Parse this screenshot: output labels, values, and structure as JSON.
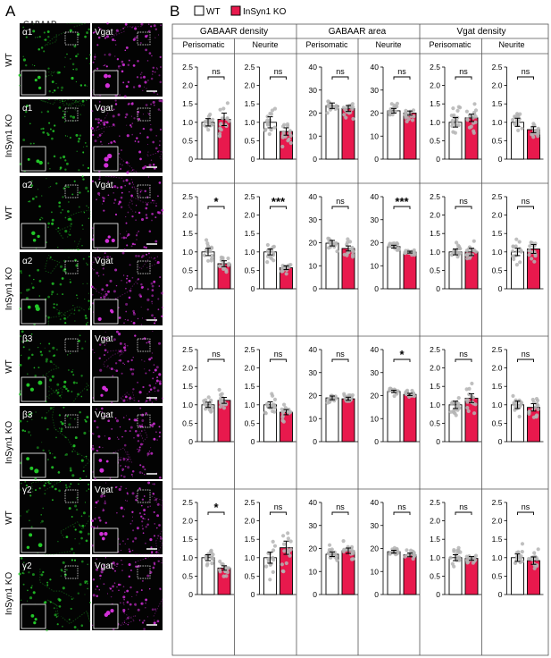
{
  "panel_a": {
    "letter": "A",
    "header": "GABAAR",
    "scale_label": "",
    "groups": [
      {
        "wt_label": "WT",
        "ko_label": "InSyn1 KO",
        "marker_wt": "α1",
        "marker_ko": "α1",
        "vgat": "Vgat"
      },
      {
        "wt_label": "WT",
        "ko_label": "InSyn1 KO",
        "marker_wt": "α2",
        "marker_ko": "α2",
        "vgat": "Vgat"
      },
      {
        "wt_label": "WT",
        "ko_label": "InSyn1 KO",
        "marker_wt": "β3",
        "marker_ko": "β3",
        "vgat": "Vgat"
      },
      {
        "wt_label": "WT",
        "ko_label": "InSyn1 KO",
        "marker_wt": "γ2",
        "marker_ko": "γ2",
        "vgat": "Vgat"
      }
    ],
    "colors": {
      "green": "#22c628",
      "magenta": "#d22fd8",
      "background": "#030303"
    }
  },
  "panel_b": {
    "letter": "B",
    "legend": [
      {
        "label": "WT",
        "color": "#ffffff"
      },
      {
        "label": "InSyn1 KO",
        "color": "#e8194d"
      }
    ],
    "measures": [
      "GABAAR density",
      "GABAAR area",
      "Vgat density"
    ],
    "locations": [
      "Perisomatic",
      "Neurite",
      "Perisomatic",
      "Neurite",
      "Perisomatic",
      "Neurite"
    ]
  },
  "chart_data": {
    "type": "bar",
    "categories": [
      "WT",
      "InSyn1 KO"
    ],
    "colors": {
      "wt": "#ffffff",
      "ko": "#e8194d",
      "dots": "#b4b4b4"
    },
    "axes": {
      "density": {
        "ylim": [
          0,
          2.5
        ],
        "ticks": [
          "0",
          "0.5",
          "1.0",
          "1.5",
          "2.0",
          "2.5"
        ],
        "tick_values": [
          0,
          0.5,
          1,
          1.5,
          2,
          2.5
        ]
      },
      "area": {
        "ylim": [
          0,
          40
        ],
        "ticks": [
          "0",
          "10",
          "20",
          "30",
          "40"
        ],
        "tick_values": [
          0,
          10,
          20,
          30,
          40
        ]
      }
    },
    "rows": [
      {
        "subunit": "α1",
        "plots": [
          {
            "measure": "GABAAR density",
            "location": "Perisomatic",
            "axis": "density",
            "wt": 1.0,
            "ko": 1.08,
            "wt_err": 0.1,
            "ko_err": 0.17,
            "sig": "ns"
          },
          {
            "measure": "GABAAR density",
            "location": "Neurite",
            "axis": "density",
            "wt": 1.0,
            "ko": 0.75,
            "wt_err": 0.15,
            "ko_err": 0.1,
            "sig": "ns"
          },
          {
            "measure": "GABAAR area",
            "location": "Perisomatic",
            "axis": "area",
            "wt": 23.2,
            "ko": 22.0,
            "wt_err": 1.2,
            "ko_err": 1.3,
            "sig": "ns"
          },
          {
            "measure": "GABAAR area",
            "location": "Neurite",
            "axis": "area",
            "wt": 21.0,
            "ko": 20.0,
            "wt_err": 1.0,
            "ko_err": 0.9,
            "sig": "ns"
          },
          {
            "measure": "Vgat density",
            "location": "Perisomatic",
            "axis": "density",
            "wt": 1.0,
            "ko": 1.12,
            "wt_err": 0.13,
            "ko_err": 0.1,
            "sig": "ns"
          },
          {
            "measure": "Vgat density",
            "location": "Neurite",
            "axis": "density",
            "wt": 1.0,
            "ko": 0.8,
            "wt_err": 0.11,
            "ko_err": 0.08,
            "sig": "ns"
          }
        ]
      },
      {
        "subunit": "α2",
        "plots": [
          {
            "measure": "GABAAR density",
            "location": "Perisomatic",
            "axis": "density",
            "wt": 1.0,
            "ko": 0.68,
            "wt_err": 0.1,
            "ko_err": 0.08,
            "sig": "*"
          },
          {
            "measure": "GABAAR density",
            "location": "Neurite",
            "axis": "density",
            "wt": 1.0,
            "ko": 0.57,
            "wt_err": 0.08,
            "ko_err": 0.05,
            "sig": "***"
          },
          {
            "measure": "GABAAR area",
            "location": "Perisomatic",
            "axis": "area",
            "wt": 19.8,
            "ko": 17.5,
            "wt_err": 1.2,
            "ko_err": 1.1,
            "sig": "ns"
          },
          {
            "measure": "GABAAR area",
            "location": "Neurite",
            "axis": "area",
            "wt": 18.3,
            "ko": 15.9,
            "wt_err": 0.6,
            "ko_err": 0.4,
            "sig": "***"
          },
          {
            "measure": "Vgat density",
            "location": "Perisomatic",
            "axis": "density",
            "wt": 1.0,
            "ko": 1.0,
            "wt_err": 0.08,
            "ko_err": 0.1,
            "sig": "ns"
          },
          {
            "measure": "Vgat density",
            "location": "Neurite",
            "axis": "density",
            "wt": 1.0,
            "ko": 1.08,
            "wt_err": 0.1,
            "ko_err": 0.12,
            "sig": "ns"
          }
        ]
      },
      {
        "subunit": "β3",
        "plots": [
          {
            "measure": "GABAAR density",
            "location": "Perisomatic",
            "axis": "density",
            "wt": 1.0,
            "ko": 1.12,
            "wt_err": 0.07,
            "ko_err": 0.08,
            "sig": "ns"
          },
          {
            "measure": "GABAAR density",
            "location": "Neurite",
            "axis": "density",
            "wt": 1.0,
            "ko": 0.8,
            "wt_err": 0.08,
            "ko_err": 0.07,
            "sig": "ns"
          },
          {
            "measure": "GABAAR area",
            "location": "Perisomatic",
            "axis": "area",
            "wt": 19.0,
            "ko": 18.6,
            "wt_err": 0.8,
            "ko_err": 0.7,
            "sig": "ns"
          },
          {
            "measure": "GABAAR area",
            "location": "Neurite",
            "axis": "area",
            "wt": 21.8,
            "ko": 20.5,
            "wt_err": 0.5,
            "ko_err": 0.5,
            "sig": "*"
          },
          {
            "measure": "Vgat density",
            "location": "Perisomatic",
            "axis": "density",
            "wt": 1.0,
            "ko": 1.18,
            "wt_err": 0.1,
            "ko_err": 0.12,
            "sig": "ns"
          },
          {
            "measure": "Vgat density",
            "location": "Neurite",
            "axis": "density",
            "wt": 1.0,
            "ko": 0.93,
            "wt_err": 0.1,
            "ko_err": 0.1,
            "sig": "ns"
          }
        ]
      },
      {
        "subunit": "γ2",
        "plots": [
          {
            "measure": "GABAAR density",
            "location": "Perisomatic",
            "axis": "density",
            "wt": 1.0,
            "ko": 0.72,
            "wt_err": 0.08,
            "ko_err": 0.06,
            "sig": "*"
          },
          {
            "measure": "GABAAR density",
            "location": "Neurite",
            "axis": "density",
            "wt": 1.0,
            "ko": 1.27,
            "wt_err": 0.15,
            "ko_err": 0.18,
            "sig": "ns"
          },
          {
            "measure": "GABAAR area",
            "location": "Perisomatic",
            "axis": "area",
            "wt": 17.5,
            "ko": 19.0,
            "wt_err": 1.0,
            "ko_err": 1.2,
            "sig": "ns"
          },
          {
            "measure": "GABAAR area",
            "location": "Neurite",
            "axis": "area",
            "wt": 18.6,
            "ko": 17.2,
            "wt_err": 0.6,
            "ko_err": 0.8,
            "sig": "ns"
          },
          {
            "measure": "Vgat density",
            "location": "Perisomatic",
            "axis": "density",
            "wt": 1.0,
            "ko": 0.98,
            "wt_err": 0.08,
            "ko_err": 0.05,
            "sig": "ns"
          },
          {
            "measure": "Vgat density",
            "location": "Neurite",
            "axis": "density",
            "wt": 1.0,
            "ko": 0.92,
            "wt_err": 0.1,
            "ko_err": 0.1,
            "sig": "ns"
          }
        ]
      }
    ]
  }
}
